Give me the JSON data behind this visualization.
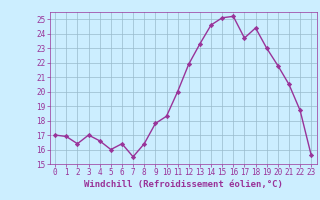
{
  "x": [
    0,
    1,
    2,
    3,
    4,
    5,
    6,
    7,
    8,
    9,
    10,
    11,
    12,
    13,
    14,
    15,
    16,
    17,
    18,
    19,
    20,
    21,
    22,
    23
  ],
  "y": [
    17.0,
    16.9,
    16.4,
    17.0,
    16.6,
    16.0,
    16.4,
    15.5,
    16.4,
    17.8,
    18.3,
    20.0,
    21.9,
    23.3,
    24.6,
    25.1,
    25.2,
    23.7,
    24.4,
    23.0,
    21.8,
    20.5,
    18.7,
    15.6
  ],
  "line_color": "#993399",
  "marker": "D",
  "marker_size": 2.2,
  "linewidth": 1.0,
  "bg_color": "#cceeff",
  "grid_color": "#99bbcc",
  "xlabel": "Windchill (Refroidissement éolien,°C)",
  "xlim": [
    -0.5,
    23.5
  ],
  "ylim": [
    15,
    25.5
  ],
  "yticks": [
    15,
    16,
    17,
    18,
    19,
    20,
    21,
    22,
    23,
    24,
    25
  ],
  "xticks": [
    0,
    1,
    2,
    3,
    4,
    5,
    6,
    7,
    8,
    9,
    10,
    11,
    12,
    13,
    14,
    15,
    16,
    17,
    18,
    19,
    20,
    21,
    22,
    23
  ],
  "tick_color": "#993399",
  "label_color": "#993399",
  "tick_fontsize": 5.5,
  "xlabel_fontsize": 6.5
}
